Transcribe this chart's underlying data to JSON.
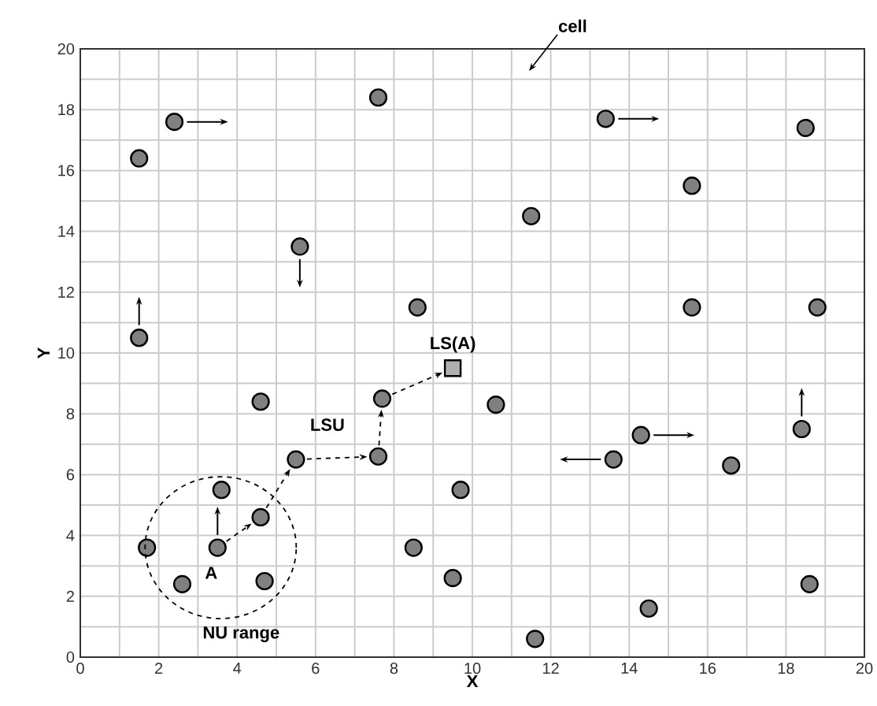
{
  "chart_data": {
    "type": "scatter",
    "xlabel": "X",
    "ylabel": "Y",
    "xlim": [
      0,
      20
    ],
    "ylim": [
      0,
      20
    ],
    "xticks": [
      0,
      2,
      4,
      6,
      8,
      10,
      12,
      14,
      16,
      18,
      20
    ],
    "yticks": [
      0,
      2,
      4,
      6,
      8,
      10,
      12,
      14,
      16,
      18,
      20
    ],
    "grid": true,
    "series": [
      {
        "color": "#808080",
        "marker": "circle",
        "x": [
          1.5,
          2.4,
          7.6,
          1.5,
          5.6,
          8.6,
          11.5,
          13.4,
          15.6,
          18.5,
          15.6,
          18.8,
          4.6,
          5.5,
          7.6,
          7.7,
          10.6,
          9.7,
          8.5,
          9.5,
          3.6,
          3.5,
          4.6,
          1.7,
          2.6,
          4.7,
          11.6,
          14.5,
          18.6,
          13.6,
          14.3,
          16.6,
          18.4
        ],
        "values": [
          16.4,
          17.6,
          18.4,
          10.5,
          13.5,
          11.5,
          14.5,
          17.7,
          15.5,
          17.4,
          11.5,
          11.5,
          8.4,
          6.5,
          6.6,
          8.5,
          8.3,
          5.5,
          3.6,
          2.6,
          5.5,
          3.6,
          4.6,
          3.6,
          2.4,
          2.5,
          0.6,
          1.6,
          2.4,
          6.5,
          7.3,
          6.3,
          7.5
        ]
      },
      {
        "color": "#b0b0b0",
        "marker": "square",
        "x": [
          9.5
        ],
        "values": [
          9.5
        ]
      }
    ],
    "annotations": [
      "cell",
      {
        "text": "LSU",
        "x": 5.5,
        "y": 6.5
      },
      {
        "text": "LS(A)",
        "x": 9.5,
        "y": 9.5
      },
      {
        "text": "A",
        "x": 3.5,
        "y": 3.6
      },
      "NU range"
    ]
  }
}
